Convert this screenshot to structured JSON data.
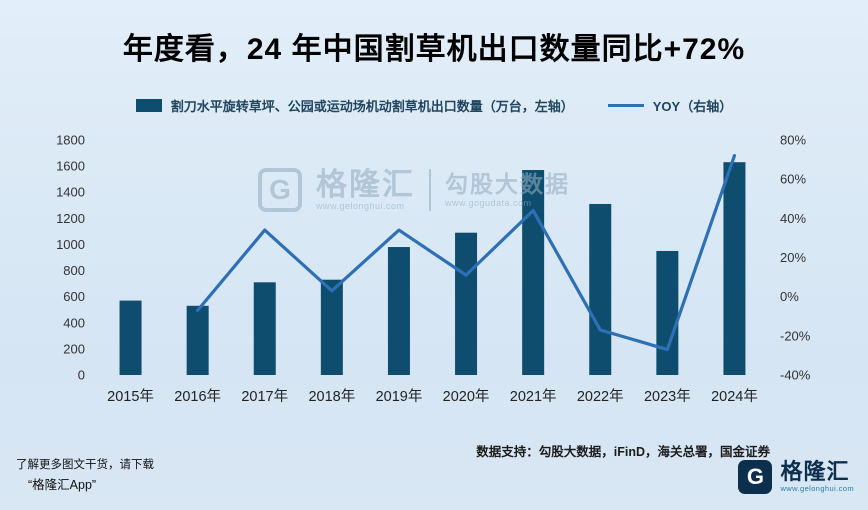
{
  "page": {
    "title": "年度看，24 年中国割草机出口数量同比+72%",
    "data_support": "数据支持：勾股大数据，iFinD，海关总署，国金证券",
    "footer_note_line1": "了解更多图文干货，请下载",
    "footer_note_line2": "“格隆汇App”",
    "brand": {
      "logo_text": "格隆汇",
      "url": "www.gelonghui.com",
      "color": "#0d2f4e"
    }
  },
  "watermark": {
    "g_letter": "G",
    "brand": "格隆汇",
    "brand_url": "www.gelonghui.com",
    "product": "勾股大数据",
    "product_url": "www.gogudata.com"
  },
  "chart_data": {
    "type": "bar+line",
    "title": "年度看，24 年中国割草机出口数量同比+72%",
    "categories": [
      "2015年",
      "2016年",
      "2017年",
      "2018年",
      "2019年",
      "2020年",
      "2021年",
      "2022年",
      "2023年",
      "2024年"
    ],
    "series": [
      {
        "name": "割刀水平旋转草坪、公园或运动场机动割草机出口数量（万台，左轴）",
        "type": "bar",
        "axis": "left",
        "color": "#0e4d6e",
        "values": [
          570,
          530,
          710,
          730,
          980,
          1090,
          1570,
          1310,
          950,
          1630
        ]
      },
      {
        "name": "YOY（右轴）",
        "type": "line",
        "axis": "right",
        "color": "#2e70b5",
        "values": [
          null,
          -7,
          34,
          3,
          34,
          11,
          44,
          -17,
          -27,
          72
        ]
      }
    ],
    "left_axis": {
      "min": 0,
      "max": 1800,
      "step": 200
    },
    "right_axis": {
      "min": -40,
      "max": 80,
      "step": 20,
      "suffix": "%"
    },
    "grid": false,
    "legend_position": "top"
  }
}
